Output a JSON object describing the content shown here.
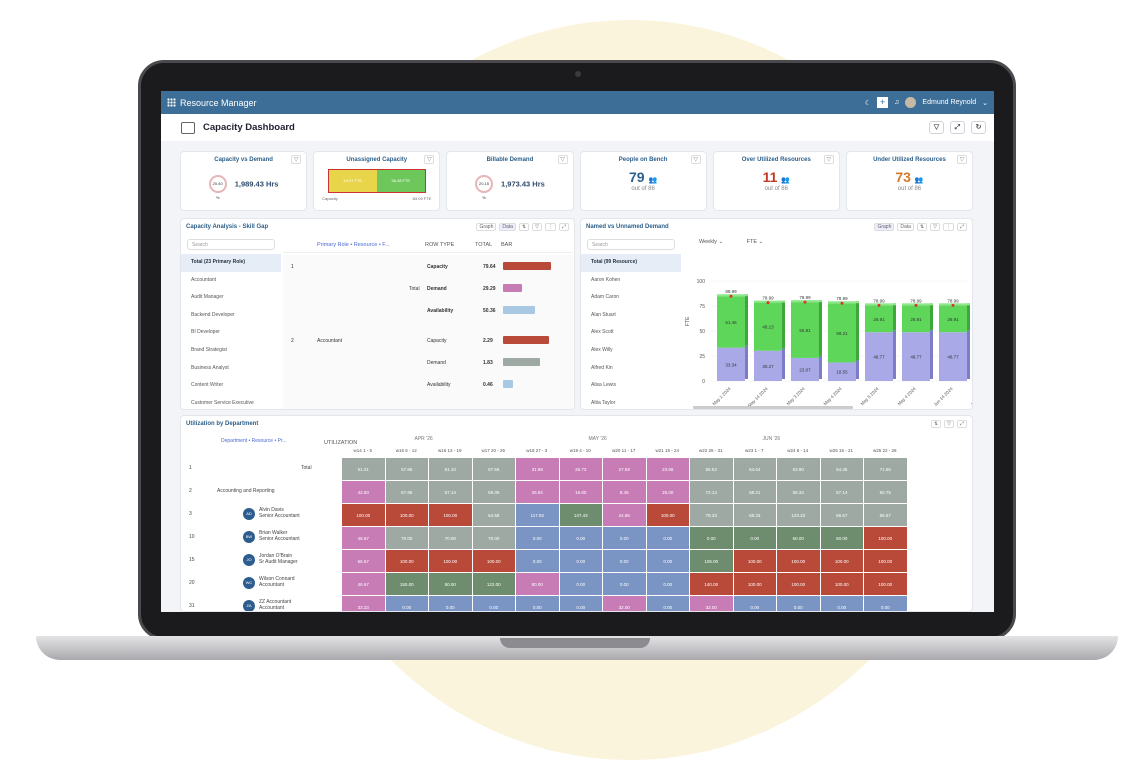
{
  "app": {
    "title": "Resource Manager",
    "user": "Edmund Reynold"
  },
  "page": {
    "title": "Capacity Dashboard"
  },
  "kpis": [
    {
      "label": "Capacity vs Demand",
      "ring": "20.40 %",
      "value": "1,989.43 Hrs"
    },
    {
      "label": "Unassigned Capacity",
      "bar_left": "44.07 FTE",
      "bar_right": "38.48 FTE",
      "legend": "Capacity",
      "legend_val": "83.09 FTE"
    },
    {
      "label": "Billable Demand",
      "ring": "20.15 %",
      "value": "1,973.43 Hrs"
    },
    {
      "label": "People on Bench",
      "value": "79",
      "sub": "out of 86",
      "color": "#2c5f8a"
    },
    {
      "label": "Over Utilized Resources",
      "value": "11",
      "sub": "out of 86",
      "color": "#c23b22"
    },
    {
      "label": "Under Utilized Resources",
      "value": "73",
      "sub": "out of 86",
      "color": "#d4782a"
    }
  ],
  "skill": {
    "title": "Capacity Analysis - Skill Gap",
    "tab_graph": "Graph",
    "tab_data": "Data",
    "search": "Search",
    "group": "Primary Role • Resource • F...",
    "col_row": "ROW TYPE",
    "col_total": "TOTAL",
    "col_bar": "BAR",
    "list": [
      "Total (23 Primary Role)",
      "Accountant",
      "Audit Manager",
      "Backend Developer",
      "BI Developer",
      "Brand Strategist",
      "Business Analyst",
      "Content Writer",
      "Customer Service Executive"
    ],
    "rows": [
      {
        "n": "1",
        "name": "",
        "type": "Capacity",
        "val": "79.64",
        "pct": 0.96,
        "color": "#b94a3a"
      },
      {
        "n": "",
        "name": "Total",
        "type": "Demand",
        "val": "29.29",
        "pct": 0.37,
        "color": "#c77cb6"
      },
      {
        "n": "",
        "name": "",
        "type": "Availability",
        "val": "50.36",
        "pct": 0.63,
        "color": "#a9c8e3"
      },
      {
        "n": "2",
        "name": "Accountant",
        "type": "Capacity",
        "val": "2.29",
        "pct": 0.92,
        "color": "#b94a3a"
      },
      {
        "n": "",
        "name": "",
        "type": "Demand",
        "val": "1.83",
        "pct": 0.74,
        "color": "#9ea9a3"
      },
      {
        "n": "",
        "name": "",
        "type": "Availability",
        "val": "0.46",
        "pct": 0.2,
        "color": "#a9c8e3"
      }
    ]
  },
  "named": {
    "title": "Named vs Unnamed Demand",
    "tab_graph": "Graph",
    "tab_data": "Data",
    "search": "Search",
    "period": "Weekly",
    "unit": "FTE",
    "list": [
      "Total (99 Resource)",
      "Aaron Kohen",
      "Adam Caron",
      "Alan Stuart",
      "Alex Scott",
      "Alex Willy",
      "Alfred Kin",
      "Alisa Lewis",
      "Alita Taylor"
    ]
  },
  "chart_data": {
    "type": "bar",
    "ylabel": "FTE",
    "ylim": [
      0,
      100
    ],
    "categories": [
      "May 1 2024",
      "May 14 2024",
      "May 3 2024",
      "May 4 2024",
      "May 5 2024",
      "May 4 2024",
      "Jun 14 2024",
      "Jun 14 2024"
    ],
    "series": [
      {
        "values": [
          33.34,
          30.27,
          23.07,
          18.55,
          48.77,
          48.77,
          48.77,
          47.3
        ],
        "color": "#a9a9e8"
      },
      {
        "values": [
          51.46,
          48.13,
          55.81,
          59.21,
          26.91,
          26.91,
          26.91,
          26.91
        ],
        "color": "#5ed65a"
      }
    ],
    "totals": [
      "89.99",
      "78.99",
      "78.99",
      "78.99",
      "78.99",
      "78.99",
      "78.99",
      "78.99"
    ],
    "labels_bottom": [
      "33.34",
      "30.27",
      "23.07",
      "18.55",
      "48.77",
      "48.77",
      "48.77",
      "47.3"
    ],
    "labels_top": [
      "51.46",
      "48.13",
      "55.81",
      "59.21",
      "26.91",
      "26.91",
      "26.91",
      "26.91"
    ],
    "yticks": [
      "100",
      "75",
      "50",
      "25",
      "0"
    ]
  },
  "util": {
    "title": "Utilization by Department",
    "group": "Department • Resource • Pr...",
    "col": "UTILIZATION",
    "months": [
      "APR '26",
      "MAY '26",
      "JUN '26"
    ],
    "weeks": [
      "w14 1 - 5",
      "w15 6 - 12",
      "w16 13 - 19",
      "w17 20 - 26",
      "w18 27 - 3",
      "w19 4 - 10",
      "w20 11 - 17",
      "w21 18 - 24",
      "w22 25 - 31",
      "w23 1 - 7",
      "w24 8 - 14",
      "w25 15 - 21",
      "w26 22 - 28"
    ],
    "rows": [
      {
        "n": "1",
        "name": "Total",
        "role": "",
        "av": "",
        "ubar": 0.55,
        "ucolor": "#9ea9a3",
        "cells": [
          "51.21",
          "57.86",
          "51.10",
          "57.56",
          "31.88",
          "26.73",
          "27.59",
          "23.68",
          "55.53",
          "54.64",
          "53.90",
          "54.36",
          "71.55"
        ],
        "colors": [
          "g",
          "g",
          "g",
          "g",
          "p",
          "p",
          "p",
          "p",
          "g",
          "g",
          "g",
          "g",
          "g"
        ]
      },
      {
        "n": "2",
        "name": "Accounting and Reporting",
        "role": "",
        "av": "",
        "ubar": 0.55,
        "ucolor": "#9ea9a3",
        "cells": [
          "42.50",
          "67.86",
          "57.14",
          "59.36",
          "26.92",
          "15.80",
          "8.45",
          "25.00",
          "72.14",
          "58.21",
          "58.34",
          "57.14",
          "60.75"
        ],
        "colors": [
          "p",
          "g",
          "g",
          "g",
          "p",
          "p",
          "p",
          "p",
          "g",
          "g",
          "g",
          "g",
          "g"
        ]
      },
      {
        "n": "3",
        "name": "Alvin Davis",
        "role": "Senior Accountant",
        "av": "AD",
        "ubar": 0.9,
        "ucolor": "#4f7ea8",
        "cells": [
          "100.00",
          "100.00",
          "100.00",
          "64.58",
          "117.92",
          "147.43",
          "24.86",
          "100.00",
          "78.33",
          "68.33",
          "123.33",
          "66.67",
          "66.67"
        ],
        "colors": [
          "r",
          "r",
          "r",
          "g",
          "b",
          "dg",
          "p",
          "r",
          "g",
          "g",
          "g",
          "g",
          "g"
        ]
      },
      {
        "n": "10",
        "name": "Brian Walker",
        "role": "Senior Accountant",
        "av": "BW",
        "ubar": 0.6,
        "ucolor": "#9ea9a3",
        "cells": [
          "46.67",
          "70.00",
          "70.00",
          "70.00",
          "0.00",
          "0.00",
          "0.00",
          "0.00",
          "0.00",
          "0.00",
          "60.00",
          "60.00",
          "100.00"
        ],
        "colors": [
          "p",
          "g",
          "g",
          "g",
          "b",
          "b",
          "b",
          "b",
          "dg",
          "dg",
          "dg",
          "dg",
          "r"
        ]
      },
      {
        "n": "15",
        "name": "Jordan O'Brain",
        "role": "Sr Audit Manager",
        "av": "JO",
        "ubar": 0.7,
        "ucolor": "#9ea9a3",
        "cells": [
          "66.67",
          "100.00",
          "100.00",
          "100.00",
          "0.00",
          "0.00",
          "0.00",
          "0.00",
          "105.00",
          "100.00",
          "100.00",
          "100.00",
          "100.00"
        ],
        "colors": [
          "p",
          "r",
          "r",
          "r",
          "b",
          "b",
          "b",
          "b",
          "dg",
          "r",
          "r",
          "r",
          "r"
        ]
      },
      {
        "n": "20",
        "name": "Wilson Connard",
        "role": "Accountant",
        "av": "WC",
        "ubar": 1.0,
        "ucolor": "#6e8c6e",
        "cells": [
          "46.67",
          "150.00",
          "50.00",
          "122.00",
          "80.00",
          "0.00",
          "0.00",
          "0.00",
          "140.00",
          "100.00",
          "100.00",
          "100.00",
          "100.00"
        ],
        "colors": [
          "p",
          "dg",
          "dg",
          "dg",
          "p",
          "b",
          "b",
          "b",
          "r",
          "r",
          "r",
          "r",
          "r"
        ]
      },
      {
        "n": "31",
        "name": "ZZ Accountant",
        "role": "Accountant",
        "av": "ZA",
        "ubar": 0.12,
        "ucolor": "#c77cb6",
        "cells": [
          "33.33",
          "0.00",
          "0.00",
          "0.00",
          "0.00",
          "0.00",
          "32.00",
          "0.00",
          "32.00",
          "0.00",
          "0.00",
          "0.00",
          "0.00"
        ],
        "colors": [
          "p",
          "b",
          "b",
          "b",
          "b",
          "b",
          "p",
          "b",
          "p",
          "b",
          "b",
          "b",
          "b"
        ]
      }
    ]
  }
}
